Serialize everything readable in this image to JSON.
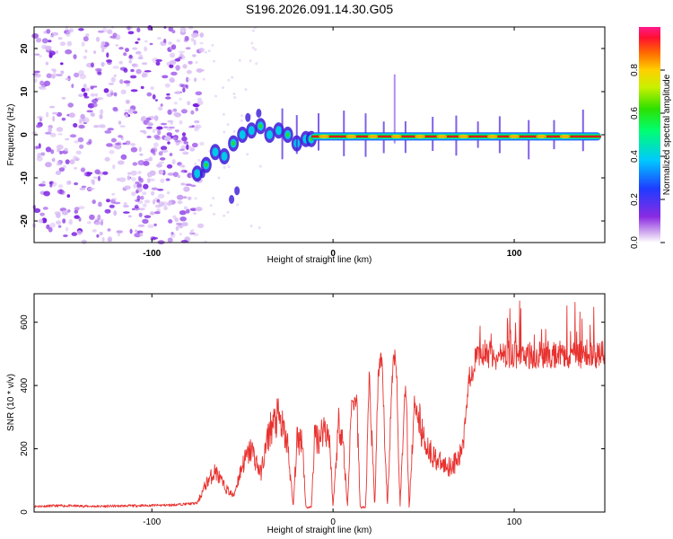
{
  "title": "S196.2026.091.14.30.G05",
  "colors": {
    "snr_line": "#e8322f",
    "track_core": "#e0001c",
    "track_mid": "#22dd33",
    "track_outer": "#00ccee",
    "track_edge": "#2244ff",
    "noise": "#8e2de2",
    "frame": "#000000"
  },
  "chart_data": [
    {
      "type": "heatmap",
      "title": "S196.2026.091.14.30.G05",
      "xlabel": "Height of straight line (km)",
      "ylabel": "Frequency (Hz)",
      "xlim": [
        -165,
        150
      ],
      "ylim": [
        -25,
        25
      ],
      "xticks": [
        -100,
        0,
        100
      ],
      "xtick_labels": [
        "-100",
        "0",
        "100"
      ],
      "yticks": [
        20,
        10,
        0,
        -10,
        -20
      ],
      "ytick_labels": [
        "20",
        "10",
        "0",
        "-10",
        "-20"
      ],
      "colorbar": {
        "label": "Normalized spectral amplitude",
        "range": [
          0,
          1
        ],
        "ticks": [
          0.0,
          0.2,
          0.4,
          0.6,
          0.8
        ],
        "tick_labels": [
          "0.0",
          "0.2",
          "0.4",
          "0.6",
          "0.8"
        ]
      },
      "noise_region_x": [
        -165,
        -72
      ],
      "transition_track": [
        {
          "x": -75,
          "y": -9
        },
        {
          "x": -70,
          "y": -7
        },
        {
          "x": -65,
          "y": -4
        },
        {
          "x": -60,
          "y": -5
        },
        {
          "x": -55,
          "y": -2
        },
        {
          "x": -50,
          "y": 0
        },
        {
          "x": -45,
          "y": 1
        },
        {
          "x": -40,
          "y": 2
        },
        {
          "x": -35,
          "y": 0
        },
        {
          "x": -30,
          "y": 1
        },
        {
          "x": -25,
          "y": 0
        },
        {
          "x": -20,
          "y": -2
        },
        {
          "x": -15,
          "y": -1
        },
        {
          "x": -12,
          "y": -1
        }
      ],
      "main_track": {
        "x_start": -12,
        "x_end": 148,
        "y": -0.4
      }
    },
    {
      "type": "line",
      "xlabel": "Height of straight line (km)",
      "ylabel": "SNR (10 * v/v)",
      "xlim": [
        -165,
        150
      ],
      "ylim": [
        0,
        690
      ],
      "xticks": [
        -100,
        0,
        100
      ],
      "xtick_labels": [
        "-100",
        "0",
        "100"
      ],
      "yticks": [
        0,
        200,
        400,
        600
      ],
      "ytick_labels": [
        "0",
        "200",
        "400",
        "600"
      ],
      "series": [
        {
          "name": "SNR",
          "x": [
            -165,
            -150,
            -130,
            -110,
            -90,
            -75,
            -70,
            -65,
            -60,
            -55,
            -50,
            -45,
            -40,
            -35,
            -30,
            -25,
            -22,
            -20,
            -17,
            -15,
            -12,
            -10,
            -8,
            -5,
            -2,
            0,
            3,
            5,
            8,
            10,
            13,
            15,
            18,
            20,
            23,
            25,
            27,
            30,
            33,
            35,
            37,
            40,
            42,
            45,
            47,
            50,
            55,
            60,
            65,
            70,
            72,
            75,
            78,
            80,
            85,
            90,
            100,
            110,
            120,
            130,
            140,
            150
          ],
          "values": [
            18,
            20,
            18,
            20,
            22,
            28,
            90,
            130,
            80,
            50,
            150,
            200,
            120,
            260,
            300,
            210,
            15,
            220,
            240,
            15,
            15,
            250,
            230,
            270,
            240,
            15,
            280,
            260,
            15,
            330,
            360,
            15,
            15,
            420,
            15,
            440,
            470,
            15,
            480,
            470,
            15,
            430,
            15,
            350,
            300,
            230,
            180,
            150,
            145,
            170,
            240,
            420,
            470,
            500,
            500,
            490,
            500,
            495,
            500,
            495,
            500,
            495
          ]
        }
      ]
    }
  ]
}
